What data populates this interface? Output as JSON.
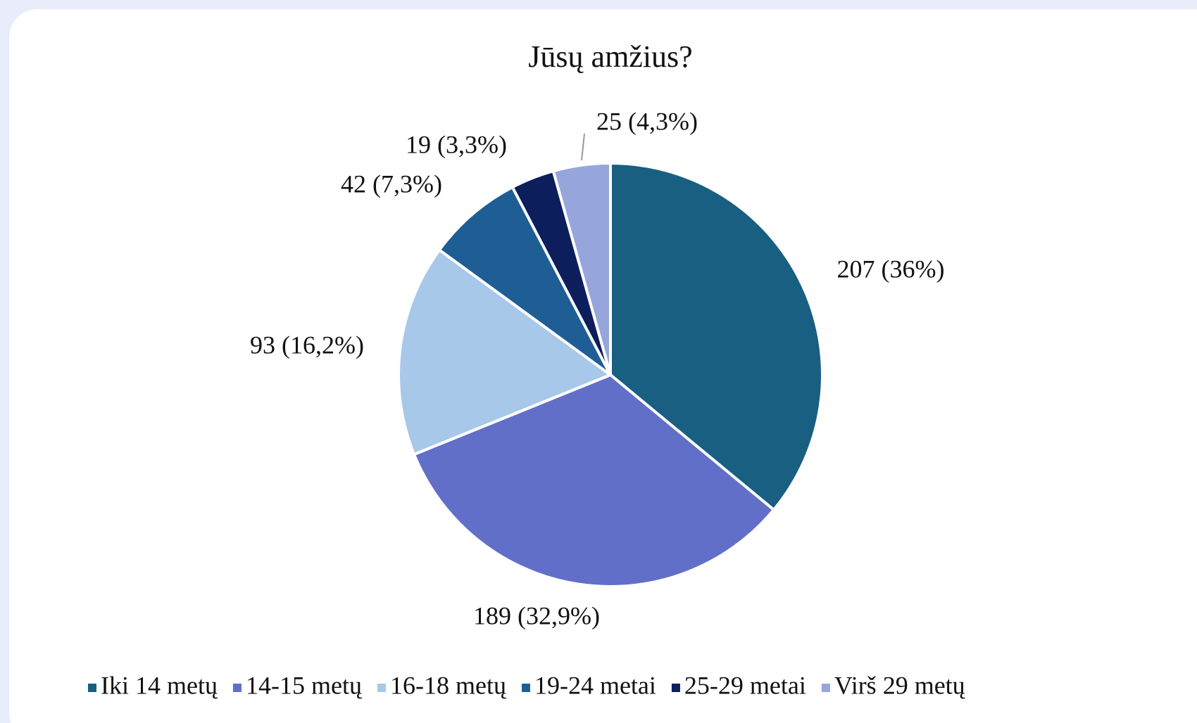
{
  "chart_data": {
    "type": "pie",
    "title": "Jūsų amžius?",
    "categories": [
      "Iki 14 metų",
      "14-15 metų",
      "16-18 metų",
      "19-24 metai",
      "25-29 metai",
      "Virš 29 metų"
    ],
    "values": [
      207,
      189,
      93,
      42,
      19,
      25
    ],
    "value_labels": [
      "207 (36%)",
      "189 (32,9%)",
      "93 (16,2%)",
      "42 (7,3%)",
      "19 (3,3%)",
      "25 (4,3%)"
    ],
    "colors": [
      "#185f82",
      "#626fc9",
      "#a8c8ea",
      "#1f5e95",
      "#0c1e5b",
      "#96a6dc"
    ],
    "legend": "bottom"
  }
}
